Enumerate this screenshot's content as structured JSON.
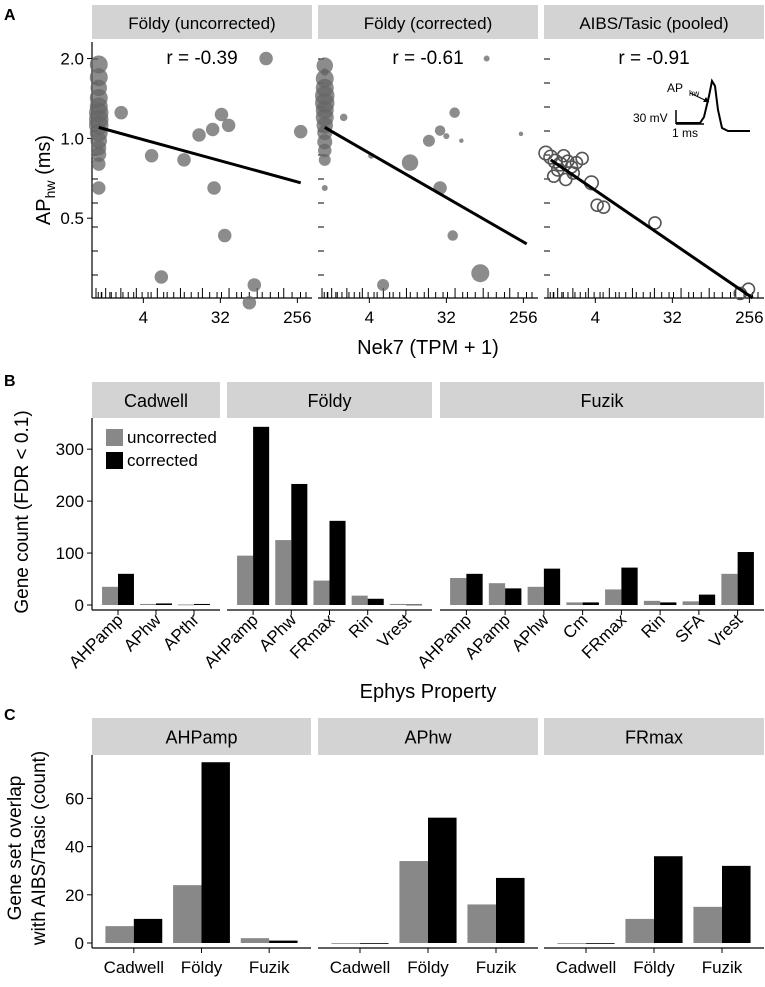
{
  "panel_letters": [
    "A",
    "B",
    "C"
  ],
  "chart_data": [
    {
      "panel": "A",
      "type": "scatter",
      "facets": [
        "Földy (uncorrected)",
        "Földy (corrected)",
        "AIBS/Tasic (pooled)"
      ],
      "r_labels": [
        "r = -0.39",
        "r = -0.61",
        "r = -0.91"
      ],
      "xlabel": "Nek7 (TPM + 1)",
      "ylabel": "AP",
      "ylabel_sub": "hw",
      "ylabel_unit": " (ms)",
      "x_scale": "log2",
      "x_ticks": [
        4,
        32,
        256
      ],
      "xlim": [
        1,
        380
      ],
      "y_scale": "log",
      "y_ticks": [
        0.5,
        1.0,
        2.0
      ],
      "y_tick_labels": [
        "0.5",
        "1.0",
        "2.0"
      ],
      "ylim": [
        0.25,
        2.25
      ],
      "fit_lines": [
        {
          "x0": 1.2,
          "y0": 1.1,
          "x1": 280,
          "y1": 0.68
        },
        {
          "x0": 1.2,
          "y0": 1.1,
          "x1": 280,
          "y1": 0.4
        },
        {
          "x0": 1.2,
          "y0": 0.83,
          "x1": 280,
          "y1": 0.25
        }
      ],
      "points": [
        [
          [
            1.2,
            1.9,
            1.2
          ],
          [
            1.2,
            1.7,
            1.2
          ],
          [
            1.2,
            1.55,
            1.1
          ],
          [
            1.2,
            1.42,
            1.2
          ],
          [
            1.2,
            1.32,
            1.2
          ],
          [
            1.2,
            1.25,
            1.3
          ],
          [
            1.2,
            1.18,
            1.3
          ],
          [
            1.2,
            1.12,
            1.3
          ],
          [
            1.2,
            1.05,
            1.2
          ],
          [
            1.2,
            0.98,
            1.1
          ],
          [
            1.2,
            0.92,
            1.0
          ],
          [
            1.2,
            0.87,
            1.0
          ],
          [
            1.2,
            0.8,
            0.9
          ],
          [
            1.2,
            0.65,
            0.9
          ],
          [
            2.2,
            1.25,
            0.9
          ],
          [
            5,
            0.86,
            0.9
          ],
          [
            12,
            0.83,
            0.9
          ],
          [
            18,
            1.03,
            0.9
          ],
          [
            26,
            1.08,
            0.9
          ],
          [
            33,
            1.23,
            0.9
          ],
          [
            40,
            1.12,
            0.9
          ],
          [
            27,
            0.65,
            0.9
          ],
          [
            36,
            0.43,
            0.9
          ],
          [
            80,
            0.28,
            0.9
          ],
          [
            6.5,
            0.3,
            0.9
          ],
          [
            70,
            0.24,
            0.9
          ],
          [
            110,
            2.0,
            0.9
          ],
          [
            280,
            1.06,
            0.9
          ]
        ],
        [
          [
            1.2,
            1.88,
            1.1
          ],
          [
            1.2,
            1.68,
            1.2
          ],
          [
            1.2,
            1.55,
            1.2
          ],
          [
            1.2,
            1.45,
            1.3
          ],
          [
            1.2,
            1.36,
            1.3
          ],
          [
            1.2,
            1.28,
            1.2
          ],
          [
            1.2,
            1.2,
            1.2
          ],
          [
            1.2,
            1.12,
            1.1
          ],
          [
            1.2,
            1.05,
            1.0
          ],
          [
            1.2,
            0.97,
            1.0
          ],
          [
            1.2,
            0.9,
            0.9
          ],
          [
            1.2,
            0.83,
            0.8
          ],
          [
            1.2,
            1.78,
            0.5
          ],
          [
            1.2,
            0.65,
            0.4
          ],
          [
            2.0,
            1.2,
            0.5
          ],
          [
            4.2,
            0.86,
            0.4
          ],
          [
            12,
            0.81,
            1.1
          ],
          [
            20,
            0.98,
            0.8
          ],
          [
            27,
            1.07,
            0.7
          ],
          [
            40,
            1.25,
            0.7
          ],
          [
            32,
            1.02,
            0.4
          ],
          [
            48,
            0.98,
            0.3
          ],
          [
            27,
            0.65,
            0.9
          ],
          [
            38,
            0.43,
            0.7
          ],
          [
            5.8,
            0.28,
            0.8
          ],
          [
            80,
            0.31,
            1.2
          ],
          [
            95,
            2.0,
            0.4
          ],
          [
            240,
            1.04,
            0.3
          ]
        ],
        [
          [
            1.05,
            0.88,
            0.9
          ],
          [
            1.2,
            0.85,
            0.9
          ],
          [
            1.35,
            0.82,
            0.9
          ],
          [
            1.55,
            0.8,
            0.9
          ],
          [
            1.7,
            0.86,
            0.8
          ],
          [
            1.9,
            0.82,
            0.8
          ],
          [
            2.1,
            0.78,
            0.8
          ],
          [
            2.4,
            0.81,
            0.8
          ],
          [
            1.3,
            0.72,
            0.8
          ],
          [
            1.8,
            0.7,
            0.8
          ],
          [
            1.45,
            0.76,
            0.8
          ],
          [
            2.2,
            0.74,
            0.8
          ],
          [
            3.6,
            0.68,
            0.9
          ],
          [
            4.2,
            0.56,
            0.8
          ],
          [
            5.0,
            0.55,
            0.8
          ],
          [
            20,
            0.48,
            0.8
          ],
          [
            200,
            0.26,
            0.8
          ],
          [
            250,
            0.27,
            0.8
          ],
          [
            2.8,
            0.84,
            0.8
          ]
        ]
      ],
      "inset": {
        "label": "AP",
        "label_sub": "hw",
        "scale_v": "30 mV",
        "scale_h": "1 ms"
      }
    },
    {
      "panel": "B",
      "type": "bar",
      "ylabel": "Gene count (FDR < 0.1)",
      "xlabel": "Ephys Property",
      "ylim": [
        0,
        360
      ],
      "y_ticks": [
        0,
        100,
        200,
        300
      ],
      "series": [
        {
          "name": "uncorrected",
          "color": "#888888"
        },
        {
          "name": "corrected",
          "color": "#000000"
        }
      ],
      "facets": [
        {
          "name": "Cadwell",
          "categories": [
            "AHPamp",
            "APhw",
            "APthr"
          ],
          "uncorrected": [
            35,
            2,
            1
          ],
          "corrected": [
            60,
            3,
            2
          ]
        },
        {
          "name": "Földy",
          "categories": [
            "AHPamp",
            "APhw",
            "FRmax",
            "Rin",
            "Vrest"
          ],
          "uncorrected": [
            95,
            125,
            47,
            18,
            2
          ],
          "corrected": [
            343,
            233,
            162,
            12,
            1
          ]
        },
        {
          "name": "Fuzik",
          "categories": [
            "AHPamp",
            "APamp",
            "APhw",
            "Cm",
            "FRmax",
            "Rin",
            "SFA",
            "Vrest"
          ],
          "uncorrected": [
            52,
            42,
            35,
            5,
            30,
            8,
            7,
            60
          ],
          "corrected": [
            60,
            32,
            70,
            5,
            72,
            5,
            20,
            102
          ]
        }
      ]
    },
    {
      "panel": "C",
      "type": "bar",
      "ylabel": [
        "Gene set overlap",
        "with AIBS/Tasic (count)"
      ],
      "ylim": [
        0,
        78
      ],
      "y_ticks": [
        0,
        20,
        40,
        60
      ],
      "series": [
        {
          "name": "uncorrected",
          "color": "#888888"
        },
        {
          "name": "corrected",
          "color": "#000000"
        }
      ],
      "facets": [
        {
          "name": "AHPamp",
          "categories": [
            "Cadwell",
            "Földy",
            "Fuzik"
          ],
          "uncorrected": [
            7,
            24,
            2
          ],
          "corrected": [
            10,
            75,
            1
          ]
        },
        {
          "name": "APhw",
          "categories": [
            "Cadwell",
            "Földy",
            "Fuzik"
          ],
          "uncorrected": [
            0,
            34,
            16
          ],
          "corrected": [
            0,
            52,
            27
          ]
        },
        {
          "name": "FRmax",
          "categories": [
            "Cadwell",
            "Földy",
            "Fuzik"
          ],
          "uncorrected": [
            0,
            10,
            15
          ],
          "corrected": [
            0,
            36,
            32
          ]
        }
      ]
    }
  ]
}
